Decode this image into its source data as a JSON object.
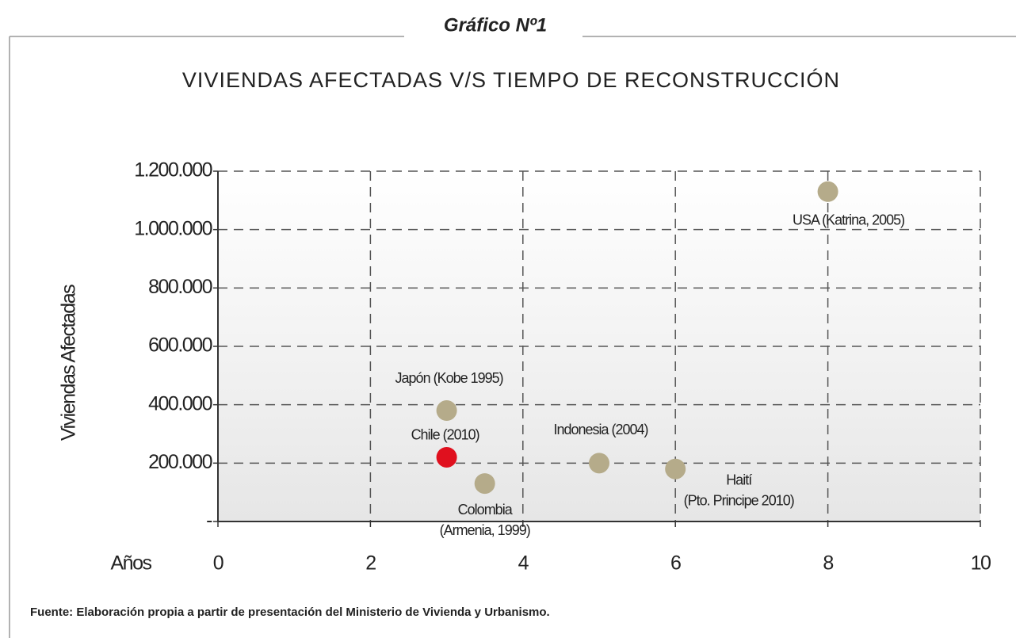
{
  "chart_data": {
    "type": "scatter",
    "header": "Gráfico Nº1",
    "title": "VIVIENDAS AFECTADAS V/S TIEMPO DE RECONSTRUCCIÓN",
    "y_label": "Viviendas Afectadas",
    "x_label": "Años",
    "source": "Fuente: Elaboración propia a partir de presentación del Ministerio de Vivienda y Urbanismo.",
    "x": [
      3,
      3,
      3.5,
      5,
      6,
      8
    ],
    "values": [
      380000,
      220000,
      130000,
      200000,
      180000,
      1130000
    ],
    "point_labels": [
      [
        "Japón (Kobe 1995)"
      ],
      [
        "Chile (2010)"
      ],
      [
        "Colombia",
        "(Armenia, 1999)"
      ],
      [
        "Indonesia (2004)"
      ],
      [
        "Haití",
        "(Pto. Principe 2010)"
      ],
      [
        "USA (Katrina, 2005)"
      ]
    ],
    "colors": [
      "#b5ab8a",
      "#e0101e",
      "#b5ab8a",
      "#b5ab8a",
      "#b5ab8a",
      "#b5ab8a"
    ],
    "xlim": [
      0,
      10
    ],
    "xticks": [
      0,
      2,
      4,
      6,
      8,
      10
    ],
    "ylim": [
      0,
      1200000
    ],
    "yticks": [
      {
        "value": 0,
        "label": "-"
      },
      {
        "value": 200000,
        "label": "200.000"
      },
      {
        "value": 400000,
        "label": "400.000"
      },
      {
        "value": 600000,
        "label": "600.000"
      },
      {
        "value": 800000,
        "label": "800.000"
      },
      {
        "value": 1000000,
        "label": "1.000.000"
      },
      {
        "value": 1200000,
        "label": "1.200.000"
      }
    ],
    "grid": true
  }
}
